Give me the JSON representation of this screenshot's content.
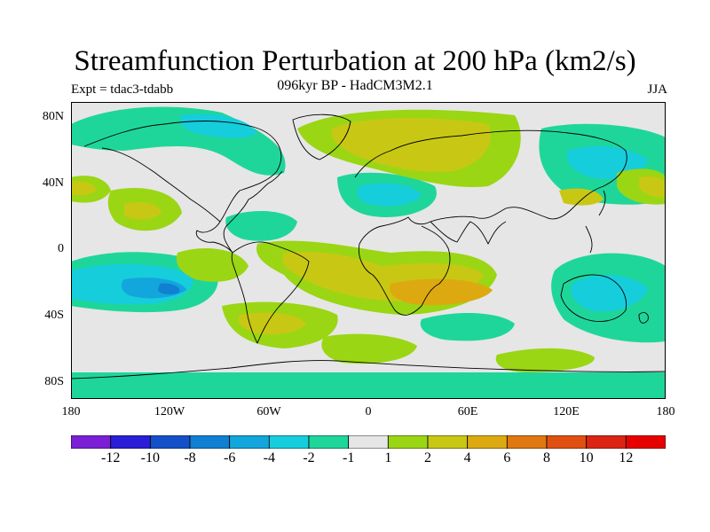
{
  "title": "Streamfunction Perturbation at 200 hPa (km2/s)",
  "subtitle": "096kyr BP - HadCM3M2.1",
  "experiment": "Expt = tdac3-tdabb",
  "season": "JJA",
  "axes": {
    "lat_labels": [
      "80N",
      "40N",
      "0",
      "40S",
      "80S"
    ],
    "lon_labels": [
      "180",
      "120W",
      "60W",
      "0",
      "60E",
      "120E",
      "180"
    ]
  },
  "colorbar": {
    "labels": [
      "-12",
      "-10",
      "-8",
      "-6",
      "-4",
      "-2",
      "-1",
      "1",
      "2",
      "4",
      "6",
      "8",
      "10",
      "12"
    ],
    "colors": [
      "#7b1fd6",
      "#2a1fd6",
      "#1450c8",
      "#1080d2",
      "#12a6dc",
      "#16cddc",
      "#1fd69a",
      "#e6e6e6",
      "#9ad614",
      "#c8c814",
      "#dcaa10",
      "#e07810",
      "#e05010",
      "#dc2414",
      "#e60000"
    ]
  },
  "palette": {
    "background": "#e6e6e6",
    "coast": "#000000"
  }
}
